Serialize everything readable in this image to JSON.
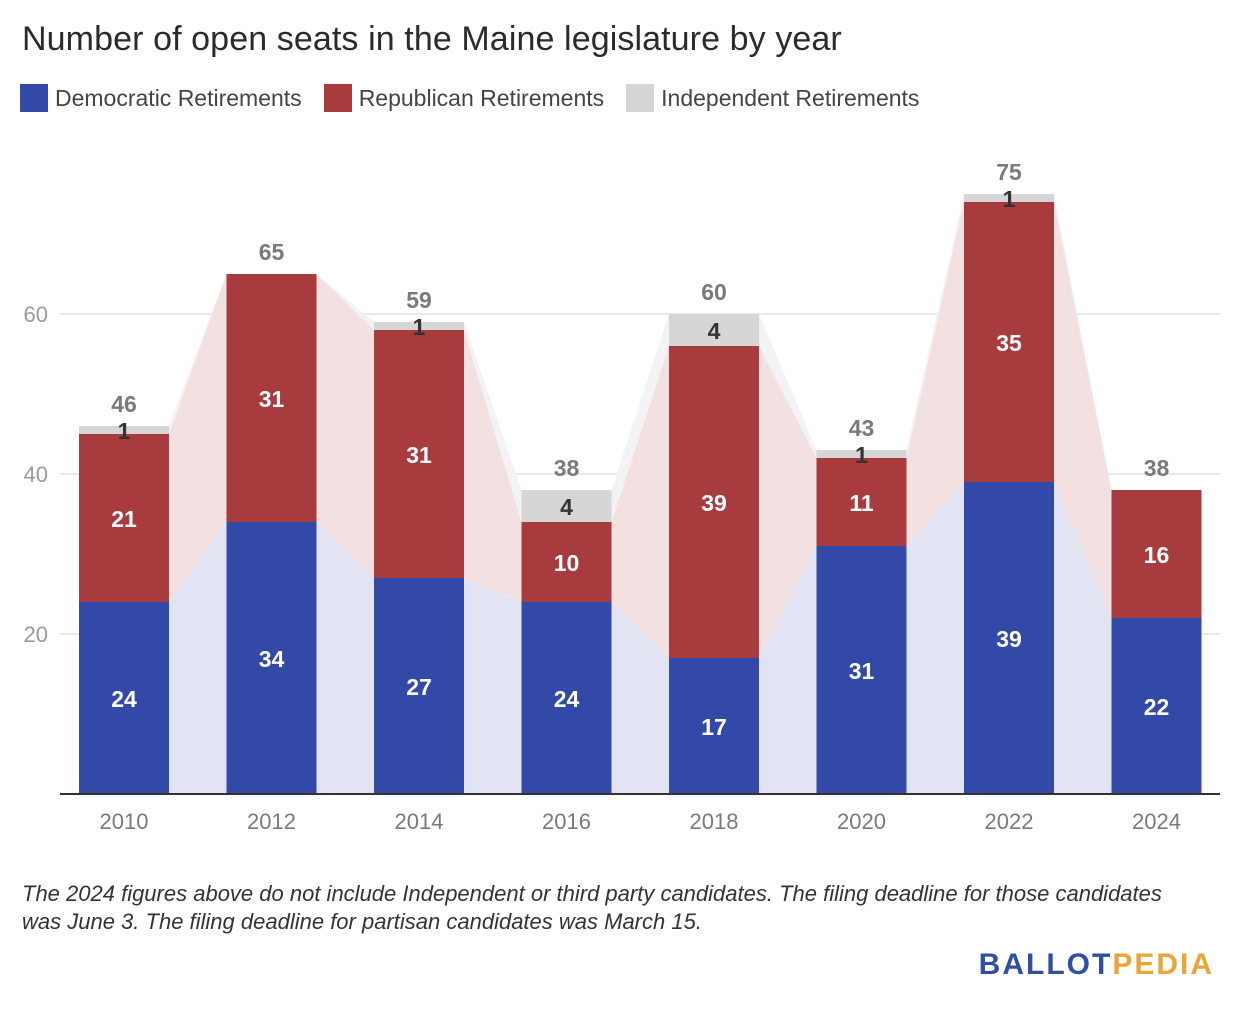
{
  "chart_data": {
    "type": "bar",
    "stacked": true,
    "title": "Number of open seats in the Maine legislature by year",
    "categories": [
      "2010",
      "2012",
      "2014",
      "2016",
      "2018",
      "2020",
      "2022",
      "2024"
    ],
    "series": [
      {
        "name": "Democratic Retirements",
        "color": "#3349a8",
        "values": [
          24,
          34,
          27,
          24,
          17,
          31,
          39,
          22
        ]
      },
      {
        "name": "Republican Retirements",
        "color": "#a83b3d",
        "values": [
          21,
          31,
          31,
          10,
          39,
          11,
          35,
          16
        ]
      },
      {
        "name": "Independent Retirements",
        "color": "#d6d6d6",
        "values": [
          1,
          0,
          1,
          4,
          4,
          1,
          1,
          0
        ]
      }
    ],
    "totals": [
      46,
      65,
      59,
      38,
      60,
      43,
      75,
      38
    ],
    "y_ticks": [
      20,
      40,
      60
    ],
    "ylim": [
      0,
      80
    ],
    "grid": true,
    "legend_position": "top-left"
  },
  "footnote": "The 2024 figures above do not include Independent or third party candidates. The filing deadline for those candidates was June 3. The filing deadline for partisan candidates was March 15.",
  "brand": {
    "part1": "BALLOT",
    "part2": "PEDIA"
  }
}
